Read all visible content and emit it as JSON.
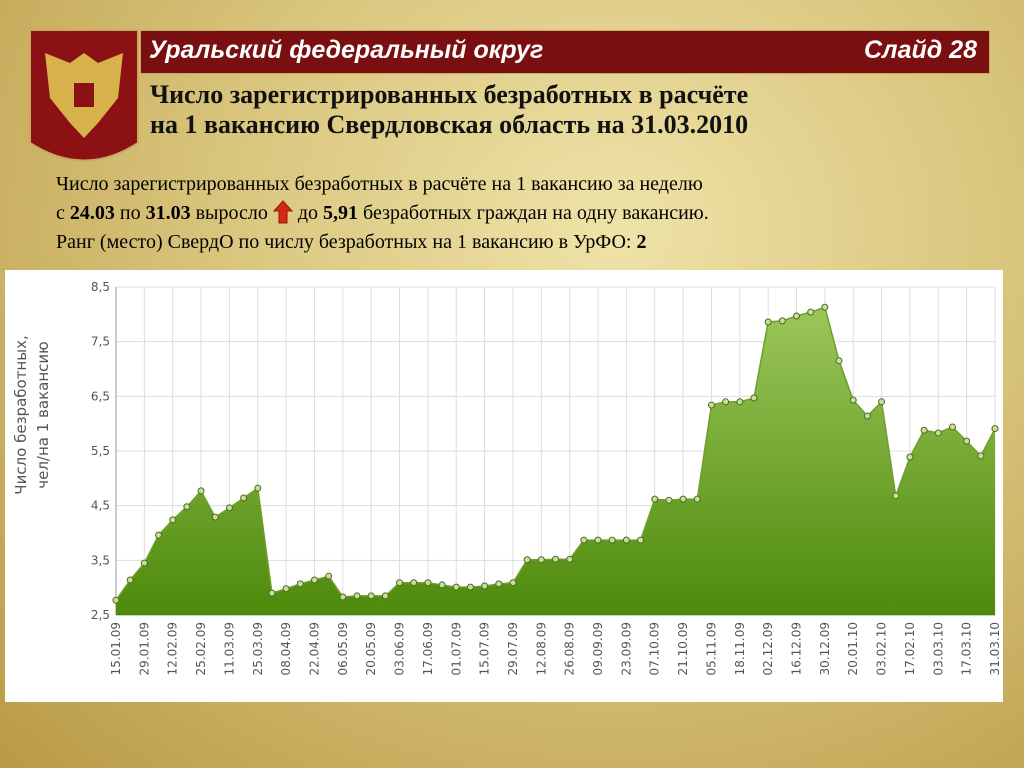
{
  "header": {
    "region": "Уральский федеральный округ",
    "slide": "Слайд 28",
    "title_lines": [
      "Число зарегистрированных безработных в расчёте",
      "на 1 вакансию Свердловская область на 31.03.2010"
    ]
  },
  "text": {
    "lines": [
      [
        {
          "t": "Число зарегистрированных безработных в расчёте на 1 вакансию за неделю",
          "b": false
        }
      ],
      [
        {
          "t": "с ",
          "b": false
        },
        {
          "t": "24.03",
          "b": true
        },
        {
          "t": " по ",
          "b": false
        },
        {
          "t": "31.03",
          "b": true
        },
        {
          "t": " выросло ",
          "b": false
        },
        {
          "t": "ICON",
          "b": false
        },
        {
          "t": " до ",
          "b": false
        },
        {
          "t": "5,91",
          "b": true
        },
        {
          "t": " безработных граждан на одну вакансию.",
          "b": false
        }
      ],
      [
        {
          "t": "Ранг (место) СвердО по числу безработных на 1 вакансию в УрФО: ",
          "b": false
        },
        {
          "t": "2",
          "b": true
        }
      ]
    ]
  },
  "chart_data": {
    "type": "area",
    "y_label_lines": [
      "Число безработных,",
      "чел/на 1 вакансию"
    ],
    "categories": [
      "15.01.09",
      null,
      "29.01.09",
      null,
      "12.02.09",
      null,
      "25.02.09",
      null,
      "11.03.09",
      null,
      "25.03.09",
      null,
      "08.04.09",
      null,
      "22.04.09",
      null,
      "06.05.09",
      null,
      "20.05.09",
      null,
      "03.06.09",
      null,
      "17.06.09",
      null,
      "01.07.09",
      null,
      "15.07.09",
      null,
      "29.07.09",
      null,
      "12.08.09",
      null,
      "26.08.09",
      null,
      "09.09.09",
      null,
      "23.09.09",
      null,
      "07.10.09",
      null,
      "21.10.09",
      null,
      "05.11.09",
      null,
      "18.11.09",
      null,
      "02.12.09",
      null,
      "16.12.09",
      null,
      "30.12.09",
      null,
      "20.01.10",
      null,
      "03.02.10",
      null,
      "17.02.10",
      null,
      "03.03.10",
      null,
      "17.03.10",
      null,
      "31.03.10"
    ],
    "values": [
      2.77,
      3.14,
      3.45,
      3.96,
      4.24,
      4.48,
      4.77,
      4.29,
      4.46,
      4.64,
      4.82,
      2.9,
      2.98,
      3.07,
      3.14,
      3.21,
      2.83,
      2.85,
      2.85,
      2.85,
      3.09,
      3.09,
      3.09,
      3.05,
      3.01,
      3.01,
      3.03,
      3.07,
      3.09,
      3.51,
      3.51,
      3.52,
      3.52,
      3.87,
      3.87,
      3.87,
      3.87,
      3.87,
      4.62,
      4.6,
      4.62,
      4.62,
      6.34,
      6.4,
      6.4,
      6.47,
      7.86,
      7.88,
      7.97,
      8.04,
      8.13,
      7.15,
      6.43,
      6.14,
      6.4,
      4.68,
      5.39,
      5.88,
      5.83,
      5.94,
      5.68,
      5.41,
      5.91
    ],
    "color": "#6f9f2a",
    "ylim": [
      2.5,
      8.5
    ],
    "yticks": [
      {
        "value": 2.5,
        "label": "2,5"
      },
      {
        "value": 3.5,
        "label": "3,5"
      },
      {
        "value": 4.5,
        "label": "4,5"
      },
      {
        "value": 5.5,
        "label": "5,5"
      },
      {
        "value": 6.5,
        "label": "6,5"
      },
      {
        "value": 7.5,
        "label": "7,5"
      },
      {
        "value": 8.5,
        "label": "8,5"
      }
    ],
    "grid": true
  }
}
